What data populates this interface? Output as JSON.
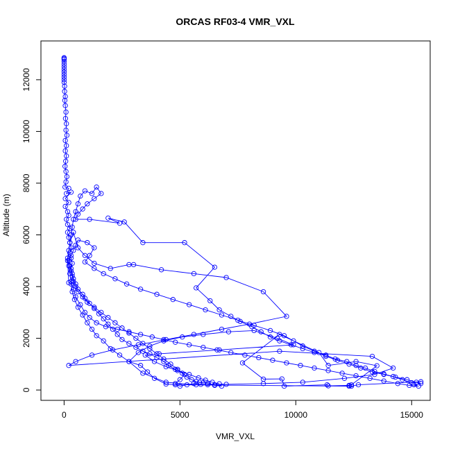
{
  "chart_data": {
    "type": "scatter",
    "title": "ORCAS RF03-4 VMR_VXL",
    "xlabel": "VMR_VXL",
    "ylabel": "Altitude (m)",
    "xlim": [
      -1000,
      15800
    ],
    "ylim": [
      -400,
      13500
    ],
    "xticks": [
      0,
      5000,
      10000,
      15000
    ],
    "yticks": [
      0,
      2000,
      4000,
      6000,
      8000,
      10000,
      12000
    ],
    "grid": false,
    "legend": "none",
    "series": [
      {
        "color": "#0000ff",
        "connected": true,
        "marker": "open-circle",
        "points": [
          [
            0,
            12850
          ],
          [
            0,
            12820
          ],
          [
            0,
            12780
          ],
          [
            0,
            12700
          ],
          [
            0,
            12600
          ],
          [
            0,
            12500
          ],
          [
            0,
            12400
          ],
          [
            0,
            12300
          ],
          [
            0,
            12200
          ],
          [
            0,
            12100
          ],
          [
            0,
            12000
          ],
          [
            0,
            11900
          ],
          [
            20,
            11750
          ],
          [
            20,
            11550
          ],
          [
            50,
            11350
          ],
          [
            30,
            11200
          ],
          [
            50,
            11000
          ],
          [
            80,
            10750
          ],
          [
            60,
            10500
          ],
          [
            100,
            10300
          ],
          [
            80,
            10050
          ],
          [
            120,
            9850
          ],
          [
            50,
            9650
          ],
          [
            100,
            9450
          ],
          [
            50,
            9250
          ],
          [
            100,
            9050
          ],
          [
            70,
            8850
          ],
          [
            40,
            8650
          ],
          [
            80,
            8450
          ],
          [
            120,
            8250
          ],
          [
            80,
            8050
          ],
          [
            40,
            7850
          ],
          [
            200,
            7800
          ],
          [
            100,
            7600
          ],
          [
            300,
            7650
          ],
          [
            50,
            7400
          ],
          [
            200,
            7250
          ],
          [
            50,
            7100
          ],
          [
            150,
            6900
          ],
          [
            200,
            6750
          ],
          [
            100,
            6600
          ],
          [
            150,
            6400
          ],
          [
            250,
            6250
          ],
          [
            150,
            6100
          ],
          [
            200,
            5900
          ],
          [
            250,
            5700
          ],
          [
            300,
            5500
          ],
          [
            250,
            5300
          ],
          [
            300,
            5100
          ],
          [
            350,
            4900
          ],
          [
            300,
            4700
          ],
          [
            350,
            4500
          ],
          [
            400,
            4300
          ],
          [
            500,
            4100
          ],
          [
            600,
            3900
          ],
          [
            800,
            3700
          ],
          [
            900,
            3550
          ],
          [
            1100,
            3350
          ],
          [
            1300,
            3150
          ],
          [
            1500,
            2950
          ],
          [
            1700,
            2750
          ],
          [
            1900,
            2550
          ],
          [
            2100,
            2350
          ],
          [
            2300,
            2150
          ],
          [
            2500,
            1950
          ],
          [
            2800,
            1800
          ],
          [
            3100,
            1650
          ],
          [
            3400,
            1500
          ],
          [
            3700,
            1400
          ],
          [
            4000,
            1250
          ],
          [
            4300,
            1100
          ],
          [
            4500,
            950
          ],
          [
            4800,
            800
          ],
          [
            5100,
            650
          ],
          [
            5300,
            500
          ],
          [
            5500,
            400
          ],
          [
            5700,
            330
          ],
          [
            5850,
            300
          ],
          [
            6000,
            280
          ],
          [
            6200,
            250
          ],
          [
            6500,
            200
          ],
          [
            6800,
            150
          ],
          [
            6500,
            180
          ],
          [
            6200,
            200
          ],
          [
            5900,
            220
          ],
          [
            5600,
            250
          ],
          [
            5300,
            200
          ],
          [
            5000,
            150
          ],
          [
            4800,
            250
          ],
          [
            5000,
            400
          ],
          [
            5200,
            600
          ],
          [
            4900,
            800
          ],
          [
            4600,
            1000
          ],
          [
            4300,
            1200
          ],
          [
            4000,
            1400
          ],
          [
            3700,
            1600
          ],
          [
            3400,
            1800
          ],
          [
            3100,
            2000
          ],
          [
            2800,
            2200
          ],
          [
            2500,
            2400
          ],
          [
            2200,
            2600
          ],
          [
            1900,
            2800
          ],
          [
            1600,
            3000
          ],
          [
            1300,
            3200
          ],
          [
            1000,
            3400
          ],
          [
            800,
            3600
          ],
          [
            600,
            3800
          ],
          [
            500,
            4000
          ],
          [
            400,
            4200
          ],
          [
            350,
            4400
          ],
          [
            300,
            4600
          ],
          [
            250,
            4800
          ],
          [
            200,
            5000
          ],
          [
            300,
            5200
          ],
          [
            400,
            5400
          ],
          [
            500,
            5600
          ],
          [
            600,
            5800
          ],
          [
            1000,
            5700
          ],
          [
            1300,
            5500
          ],
          [
            1100,
            5200
          ],
          [
            900,
            4950
          ],
          [
            1300,
            4700
          ],
          [
            1700,
            4500
          ],
          [
            2200,
            4300
          ],
          [
            2700,
            4100
          ],
          [
            3300,
            3900
          ],
          [
            4000,
            3700
          ],
          [
            4700,
            3500
          ],
          [
            5400,
            3300
          ],
          [
            6100,
            3100
          ],
          [
            6800,
            2900
          ],
          [
            7500,
            2700
          ],
          [
            8200,
            2500
          ],
          [
            8900,
            2300
          ],
          [
            9500,
            2100
          ],
          [
            9900,
            1900
          ],
          [
            10300,
            1700
          ],
          [
            10800,
            1500
          ],
          [
            11300,
            1300
          ],
          [
            11800,
            1150
          ],
          [
            12300,
            1000
          ],
          [
            12800,
            850
          ],
          [
            13300,
            700
          ],
          [
            13800,
            600
          ],
          [
            14300,
            500
          ],
          [
            14800,
            400
          ],
          [
            15200,
            300
          ],
          [
            15400,
            250
          ],
          [
            15100,
            200
          ],
          [
            15300,
            150
          ],
          [
            14900,
            180
          ],
          [
            14400,
            250
          ],
          [
            13800,
            350
          ],
          [
            13200,
            450
          ],
          [
            12600,
            550
          ],
          [
            12000,
            650
          ],
          [
            11400,
            750
          ],
          [
            10800,
            850
          ],
          [
            10200,
            950
          ],
          [
            9600,
            1050
          ],
          [
            9000,
            1150
          ],
          [
            8400,
            1250
          ],
          [
            7800,
            1350
          ],
          [
            7200,
            1450
          ],
          [
            6600,
            1550
          ],
          [
            6000,
            1650
          ],
          [
            5400,
            1750
          ],
          [
            4800,
            1850
          ],
          [
            4300,
            1950
          ],
          [
            3800,
            2050
          ],
          [
            3300,
            2150
          ],
          [
            2800,
            2250
          ],
          [
            2300,
            2350
          ],
          [
            1800,
            2450
          ],
          [
            1400,
            2600
          ],
          [
            1100,
            2800
          ],
          [
            900,
            3000
          ],
          [
            700,
            3300
          ],
          [
            500,
            3600
          ],
          [
            400,
            3900
          ],
          [
            300,
            4200
          ],
          [
            250,
            4500
          ],
          [
            200,
            4800
          ],
          [
            150,
            5100
          ],
          [
            200,
            5400
          ],
          [
            250,
            5700
          ],
          [
            300,
            6000
          ],
          [
            350,
            6300
          ],
          [
            400,
            6600
          ],
          [
            500,
            6900
          ],
          [
            600,
            7200
          ],
          [
            700,
            7500
          ],
          [
            900,
            7700
          ],
          [
            1200,
            7600
          ],
          [
            1400,
            7850
          ],
          [
            1600,
            7600
          ],
          [
            1300,
            7400
          ],
          [
            1000,
            7200
          ],
          [
            800,
            7000
          ],
          [
            600,
            6800
          ],
          [
            500,
            6600
          ],
          [
            1100,
            6600
          ],
          [
            2400,
            6450
          ],
          [
            1900,
            6650
          ],
          [
            2600,
            6500
          ],
          [
            3400,
            5700
          ],
          [
            5200,
            5700
          ],
          [
            6500,
            4750
          ],
          [
            5700,
            3950
          ],
          [
            6300,
            3450
          ],
          [
            6700,
            3100
          ],
          [
            7200,
            2850
          ],
          [
            7600,
            2650
          ],
          [
            8100,
            2450
          ],
          [
            8500,
            2250
          ],
          [
            8900,
            2050
          ],
          [
            9300,
            1900
          ],
          [
            9800,
            1750
          ],
          [
            10300,
            1600
          ],
          [
            10800,
            1450
          ],
          [
            11300,
            1350
          ],
          [
            11700,
            1200
          ],
          [
            12200,
            1100
          ],
          [
            12600,
            950
          ],
          [
            13000,
            850
          ],
          [
            13400,
            720
          ],
          [
            13800,
            620
          ],
          [
            14200,
            520
          ],
          [
            14600,
            400
          ],
          [
            15000,
            280
          ],
          [
            15400,
            320
          ],
          [
            12700,
            200
          ],
          [
            12400,
            150
          ],
          [
            12300,
            180
          ],
          [
            11400,
            160
          ],
          [
            11350,
            200
          ],
          [
            9500,
            150
          ],
          [
            9400,
            430
          ],
          [
            8600,
            420
          ],
          [
            7700,
            1050
          ],
          [
            9300,
            2150
          ],
          [
            11000,
            1450
          ],
          [
            11400,
            950
          ],
          [
            12600,
            1100
          ],
          [
            13500,
            940
          ],
          [
            12400,
            200
          ],
          [
            12300,
            150
          ],
          [
            4800,
            200
          ],
          [
            4400,
            230
          ],
          [
            3900,
            450
          ],
          [
            3600,
            700
          ],
          [
            3300,
            950
          ],
          [
            2800,
            1100
          ],
          [
            2400,
            1350
          ],
          [
            2000,
            1600
          ],
          [
            1700,
            1900
          ],
          [
            1400,
            2100
          ],
          [
            1200,
            2350
          ],
          [
            1000,
            2600
          ],
          [
            800,
            2900
          ],
          [
            600,
            3200
          ],
          [
            450,
            3500
          ],
          [
            350,
            3800
          ],
          [
            300,
            4100
          ],
          [
            200,
            4150
          ],
          [
            150,
            5000
          ],
          [
            250,
            5700
          ],
          [
            400,
            6100
          ],
          [
            600,
            5500
          ],
          [
            900,
            5200
          ],
          [
            1300,
            4900
          ],
          [
            2000,
            4700
          ],
          [
            2800,
            4850
          ],
          [
            3000,
            4850
          ],
          [
            4200,
            4650
          ],
          [
            5600,
            4500
          ],
          [
            7000,
            4350
          ],
          [
            8600,
            3800
          ],
          [
            9600,
            2850
          ],
          [
            8000,
            2550
          ],
          [
            6800,
            2350
          ],
          [
            5600,
            2150
          ],
          [
            4400,
            1950
          ],
          [
            3200,
            1750
          ],
          [
            2100,
            1550
          ],
          [
            1200,
            1350
          ],
          [
            500,
            1100
          ],
          [
            200,
            950
          ],
          [
            9300,
            1500
          ],
          [
            13300,
            1300
          ],
          [
            14200,
            850
          ],
          [
            13400,
            600
          ],
          [
            12100,
            450
          ],
          [
            10300,
            300
          ],
          [
            8600,
            250
          ],
          [
            7000,
            220
          ],
          [
            5700,
            200
          ],
          [
            4400,
            300
          ],
          [
            3400,
            650
          ],
          [
            2800,
            1100
          ],
          [
            3200,
            1450
          ],
          [
            3700,
            1700
          ],
          [
            4300,
            1900
          ],
          [
            5100,
            2050
          ],
          [
            6000,
            2150
          ],
          [
            7100,
            2250
          ],
          [
            8200,
            2300
          ],
          [
            9200,
            2000
          ],
          [
            9900,
            1750
          ],
          [
            6700,
            1550
          ],
          [
            4100,
            1400
          ],
          [
            3500,
            1350
          ],
          [
            3900,
            1100
          ],
          [
            4400,
            900
          ],
          [
            4900,
            750
          ],
          [
            5400,
            600
          ],
          [
            5800,
            470
          ],
          [
            6100,
            380
          ],
          [
            6400,
            300
          ],
          [
            6700,
            240
          ]
        ]
      }
    ]
  }
}
